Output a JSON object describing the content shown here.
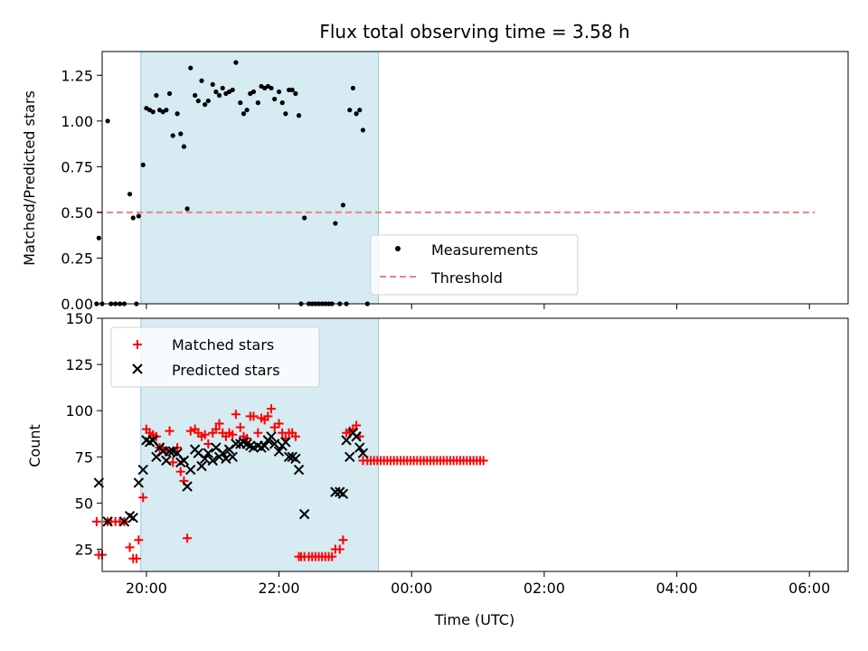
{
  "chart_data": [
    {
      "type": "scatter",
      "title": "Flux total observing time = 3.58 h",
      "xlabel": "",
      "ylabel": "Matched/Predicted stars",
      "xlim": [
        "19:20",
        "06:35"
      ],
      "ylim": [
        0,
        1.38
      ],
      "yticks": [
        "0.00",
        "0.25",
        "0.50",
        "0.75",
        "1.00",
        "1.25"
      ],
      "shaded_span": [
        "19:55",
        "23:30"
      ],
      "legend_position": "lower-center",
      "series": [
        {
          "name": "Measurements",
          "marker": "dot",
          "color": "#000000",
          "points": [
            [
              "19:15",
              0.0
            ],
            [
              "19:17",
              0.36
            ],
            [
              "19:20",
              0.0
            ],
            [
              "19:25",
              1.0
            ],
            [
              "19:28",
              0.0
            ],
            [
              "19:32",
              0.0
            ],
            [
              "19:36",
              0.0
            ],
            [
              "19:40",
              0.0
            ],
            [
              "19:45",
              0.6
            ],
            [
              "19:48",
              0.47
            ],
            [
              "19:51",
              0.0
            ],
            [
              "19:53",
              0.48
            ],
            [
              "19:57",
              0.76
            ],
            [
              "20:00",
              1.07
            ],
            [
              "20:03",
              1.06
            ],
            [
              "20:06",
              1.05
            ],
            [
              "20:09",
              1.14
            ],
            [
              "20:12",
              1.06
            ],
            [
              "20:15",
              1.05
            ],
            [
              "20:18",
              1.06
            ],
            [
              "20:21",
              1.15
            ],
            [
              "20:24",
              0.92
            ],
            [
              "20:28",
              1.04
            ],
            [
              "20:31",
              0.93
            ],
            [
              "20:34",
              0.86
            ],
            [
              "20:37",
              0.52
            ],
            [
              "20:40",
              1.29
            ],
            [
              "20:44",
              1.14
            ],
            [
              "20:47",
              1.11
            ],
            [
              "20:50",
              1.22
            ],
            [
              "20:53",
              1.09
            ],
            [
              "20:56",
              1.11
            ],
            [
              "21:00",
              1.2
            ],
            [
              "21:03",
              1.16
            ],
            [
              "21:06",
              1.14
            ],
            [
              "21:09",
              1.18
            ],
            [
              "21:12",
              1.15
            ],
            [
              "21:15",
              1.16
            ],
            [
              "21:18",
              1.17
            ],
            [
              "21:21",
              1.32
            ],
            [
              "21:25",
              1.1
            ],
            [
              "21:28",
              1.04
            ],
            [
              "21:31",
              1.06
            ],
            [
              "21:34",
              1.15
            ],
            [
              "21:37",
              1.16
            ],
            [
              "21:41",
              1.1
            ],
            [
              "21:44",
              1.19
            ],
            [
              "21:47",
              1.18
            ],
            [
              "21:50",
              1.19
            ],
            [
              "21:53",
              1.18
            ],
            [
              "21:56",
              1.12
            ],
            [
              "22:00",
              1.16
            ],
            [
              "22:03",
              1.1
            ],
            [
              "22:06",
              1.04
            ],
            [
              "22:09",
              1.17
            ],
            [
              "22:12",
              1.17
            ],
            [
              "22:15",
              1.15
            ],
            [
              "22:18",
              1.03
            ],
            [
              "22:20",
              0.0
            ],
            [
              "22:23",
              0.47
            ],
            [
              "22:27",
              0.0
            ],
            [
              "22:30",
              0.0
            ],
            [
              "22:33",
              0.0
            ],
            [
              "22:36",
              0.0
            ],
            [
              "22:39",
              0.0
            ],
            [
              "22:42",
              0.0
            ],
            [
              "22:45",
              0.0
            ],
            [
              "22:48",
              0.0
            ],
            [
              "22:51",
              0.44
            ],
            [
              "22:55",
              0.0
            ],
            [
              "22:58",
              0.54
            ],
            [
              "23:01",
              0.0
            ],
            [
              "23:04",
              1.06
            ],
            [
              "23:07",
              1.18
            ],
            [
              "23:10",
              1.04
            ],
            [
              "23:13",
              1.06
            ],
            [
              "23:16",
              0.95
            ],
            [
              "23:20",
              0.0
            ]
          ]
        },
        {
          "name": "Threshold",
          "line": "dashed",
          "color": "#f08080",
          "points": [
            [
              "19:15",
              0.5
            ],
            [
              "06:05",
              0.5
            ]
          ]
        }
      ]
    },
    {
      "type": "scatter",
      "title": "",
      "xlabel": "Time (UTC)",
      "ylabel": "Count",
      "xlim": [
        "19:20",
        "06:35"
      ],
      "ylim": [
        13,
        150
      ],
      "yticks": [
        "25",
        "50",
        "75",
        "100",
        "125",
        "150"
      ],
      "xticks": [
        "20:00",
        "22:00",
        "00:00",
        "02:00",
        "04:00",
        "06:00"
      ],
      "shaded_span": [
        "19:55",
        "23:30"
      ],
      "legend_position": "upper-left",
      "series": [
        {
          "name": "Matched stars",
          "marker": "plus",
          "color": "#ff0000",
          "points": [
            [
              "19:15",
              40
            ],
            [
              "19:17",
              22
            ],
            [
              "19:20",
              22
            ],
            [
              "19:25",
              40
            ],
            [
              "19:28",
              40
            ],
            [
              "19:32",
              40
            ],
            [
              "19:36",
              40
            ],
            [
              "19:40",
              40
            ],
            [
              "19:45",
              26
            ],
            [
              "19:48",
              20
            ],
            [
              "19:51",
              20
            ],
            [
              "19:53",
              30
            ],
            [
              "19:57",
              53
            ],
            [
              "20:00",
              90
            ],
            [
              "20:03",
              88
            ],
            [
              "20:06",
              87
            ],
            [
              "20:09",
              86
            ],
            [
              "20:12",
              80
            ],
            [
              "20:15",
              80
            ],
            [
              "20:18",
              78
            ],
            [
              "20:21",
              89
            ],
            [
              "20:24",
              72
            ],
            [
              "20:28",
              80
            ],
            [
              "20:31",
              67
            ],
            [
              "20:34",
              62
            ],
            [
              "20:37",
              31
            ],
            [
              "20:40",
              89
            ],
            [
              "20:44",
              90
            ],
            [
              "20:47",
              88
            ],
            [
              "20:50",
              86
            ],
            [
              "20:53",
              87
            ],
            [
              "20:56",
              82
            ],
            [
              "21:00",
              88
            ],
            [
              "21:03",
              90
            ],
            [
              "21:06",
              93
            ],
            [
              "21:09",
              88
            ],
            [
              "21:12",
              86
            ],
            [
              "21:15",
              88
            ],
            [
              "21:18",
              87
            ],
            [
              "21:21",
              98
            ],
            [
              "21:25",
              91
            ],
            [
              "21:28",
              86
            ],
            [
              "21:31",
              85
            ],
            [
              "21:34",
              97
            ],
            [
              "21:37",
              97
            ],
            [
              "21:41",
              88
            ],
            [
              "21:44",
              96
            ],
            [
              "21:47",
              95
            ],
            [
              "21:50",
              97
            ],
            [
              "21:53",
              101
            ],
            [
              "21:56",
              91
            ],
            [
              "22:00",
              93
            ],
            [
              "22:03",
              88
            ],
            [
              "22:06",
              85
            ],
            [
              "22:09",
              88
            ],
            [
              "22:12",
              88
            ],
            [
              "22:15",
              86
            ],
            [
              "22:18",
              21
            ],
            [
              "22:20",
              21
            ],
            [
              "22:23",
              21
            ],
            [
              "22:27",
              21
            ],
            [
              "22:30",
              21
            ],
            [
              "22:33",
              21
            ],
            [
              "22:36",
              21
            ],
            [
              "22:39",
              21
            ],
            [
              "22:42",
              21
            ],
            [
              "22:45",
              21
            ],
            [
              "22:48",
              21
            ],
            [
              "22:51",
              25
            ],
            [
              "22:55",
              25
            ],
            [
              "22:58",
              30
            ],
            [
              "23:01",
              88
            ],
            [
              "23:04",
              89
            ],
            [
              "23:07",
              90
            ],
            [
              "23:10",
              92
            ],
            [
              "23:13",
              86
            ],
            [
              "23:16",
              73
            ],
            [
              "23:20",
              73
            ],
            [
              "23:23",
              73
            ],
            [
              "23:26",
              73
            ],
            [
              "23:29",
              73
            ],
            [
              "23:32",
              73
            ],
            [
              "23:35",
              73
            ],
            [
              "23:38",
              73
            ],
            [
              "23:41",
              73
            ],
            [
              "23:44",
              73
            ],
            [
              "23:47",
              73
            ],
            [
              "23:50",
              73
            ],
            [
              "23:53",
              73
            ],
            [
              "23:56",
              73
            ],
            [
              "23:59",
              73
            ],
            [
              "00:02",
              73
            ],
            [
              "00:05",
              73
            ],
            [
              "00:08",
              73
            ],
            [
              "00:11",
              73
            ],
            [
              "00:14",
              73
            ],
            [
              "00:17",
              73
            ],
            [
              "00:20",
              73
            ],
            [
              "00:23",
              73
            ],
            [
              "00:26",
              73
            ],
            [
              "00:29",
              73
            ],
            [
              "00:32",
              73
            ],
            [
              "00:35",
              73
            ],
            [
              "00:38",
              73
            ],
            [
              "00:41",
              73
            ],
            [
              "00:44",
              73
            ],
            [
              "00:47",
              73
            ],
            [
              "00:50",
              73
            ],
            [
              "00:53",
              73
            ],
            [
              "00:56",
              73
            ],
            [
              "00:59",
              73
            ],
            [
              "01:02",
              73
            ],
            [
              "01:05",
              73
            ]
          ]
        },
        {
          "name": "Predicted stars",
          "marker": "x",
          "color": "#000000",
          "points": [
            [
              "19:17",
              61
            ],
            [
              "19:25",
              40
            ],
            [
              "19:40",
              40
            ],
            [
              "19:45",
              43
            ],
            [
              "19:48",
              42
            ],
            [
              "19:53",
              61
            ],
            [
              "19:57",
              68
            ],
            [
              "20:00",
              84
            ],
            [
              "20:03",
              83
            ],
            [
              "20:06",
              84
            ],
            [
              "20:09",
              75
            ],
            [
              "20:12",
              80
            ],
            [
              "20:15",
              78
            ],
            [
              "20:18",
              73
            ],
            [
              "20:21",
              78
            ],
            [
              "20:24",
              78
            ],
            [
              "20:28",
              77
            ],
            [
              "20:31",
              72
            ],
            [
              "20:34",
              73
            ],
            [
              "20:37",
              59
            ],
            [
              "20:40",
              68
            ],
            [
              "20:44",
              79
            ],
            [
              "20:47",
              77
            ],
            [
              "20:50",
              70
            ],
            [
              "20:53",
              74
            ],
            [
              "20:56",
              77
            ],
            [
              "21:00",
              73
            ],
            [
              "21:03",
              80
            ],
            [
              "21:06",
              75
            ],
            [
              "21:09",
              77
            ],
            [
              "21:12",
              74
            ],
            [
              "21:15",
              79
            ],
            [
              "21:18",
              75
            ],
            [
              "21:21",
              82
            ],
            [
              "21:25",
              82
            ],
            [
              "21:28",
              83
            ],
            [
              "21:31",
              82
            ],
            [
              "21:34",
              81
            ],
            [
              "21:37",
              80
            ],
            [
              "21:41",
              81
            ],
            [
              "21:44",
              80
            ],
            [
              "21:47",
              81
            ],
            [
              "21:50",
              84
            ],
            [
              "21:53",
              86
            ],
            [
              "21:56",
              82
            ],
            [
              "22:00",
              78
            ],
            [
              "22:03",
              81
            ],
            [
              "22:06",
              83
            ],
            [
              "22:09",
              75
            ],
            [
              "22:12",
              75
            ],
            [
              "22:15",
              74
            ],
            [
              "22:18",
              68
            ],
            [
              "22:23",
              44
            ],
            [
              "22:51",
              56
            ],
            [
              "22:55",
              56
            ],
            [
              "22:58",
              55
            ],
            [
              "23:01",
              84
            ],
            [
              "23:04",
              75
            ],
            [
              "23:07",
              88
            ],
            [
              "23:10",
              86
            ],
            [
              "23:13",
              80
            ],
            [
              "23:16",
              77
            ]
          ]
        }
      ]
    }
  ]
}
